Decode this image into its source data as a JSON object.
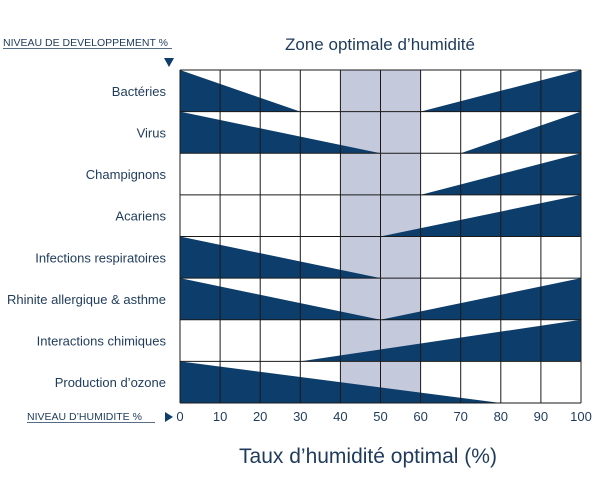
{
  "chart_data": {
    "type": "area",
    "title": "Zone optimale d’humidité",
    "top_axis_label": "NIVEAU  DE DEVELOPPEMENT  %",
    "bottom_axis_label": "NIVEAU  D’HUMIDITE  %",
    "xlabel": "Taux d’humidité optimal (%)",
    "xlim": [
      0,
      100
    ],
    "xticks": [
      "0",
      "10",
      "20",
      "30",
      "40",
      "50",
      "60",
      "70",
      "80",
      "90",
      "100"
    ],
    "optimal_zone": [
      40,
      60
    ],
    "grid": true,
    "colors": {
      "fill": "#0d3e6b",
      "zone": "#c5c9dc",
      "grid": "#1a1a1a",
      "text": "#1f3b5c"
    },
    "series": [
      {
        "name": "Bactéries",
        "segments": [
          {
            "x": [
              0,
              30
            ],
            "level": [
              100,
              0
            ]
          },
          {
            "x": [
              60,
              100
            ],
            "level": [
              0,
              100
            ]
          }
        ]
      },
      {
        "name": "Virus",
        "segments": [
          {
            "x": [
              0,
              50
            ],
            "level": [
              100,
              0
            ]
          },
          {
            "x": [
              70,
              100
            ],
            "level": [
              0,
              100
            ]
          }
        ]
      },
      {
        "name": "Champignons",
        "segments": [
          {
            "x": [
              60,
              100
            ],
            "level": [
              0,
              100
            ]
          }
        ]
      },
      {
        "name": "Acariens",
        "segments": [
          {
            "x": [
              50,
              100
            ],
            "level": [
              0,
              100
            ]
          }
        ]
      },
      {
        "name": "Infections respiratoires",
        "segments": [
          {
            "x": [
              0,
              50
            ],
            "level": [
              100,
              0
            ]
          }
        ]
      },
      {
        "name": "Rhinite allergique & asthme",
        "segments": [
          {
            "x": [
              0,
              50
            ],
            "level": [
              100,
              0
            ]
          },
          {
            "x": [
              50,
              100
            ],
            "level": [
              0,
              100
            ]
          }
        ]
      },
      {
        "name": "Interactions chimiques",
        "segments": [
          {
            "x": [
              30,
              100
            ],
            "level": [
              0,
              100
            ]
          }
        ]
      },
      {
        "name": "Production d’ozone",
        "segments": [
          {
            "x": [
              0,
              80
            ],
            "level": [
              100,
              0
            ]
          }
        ]
      }
    ]
  }
}
